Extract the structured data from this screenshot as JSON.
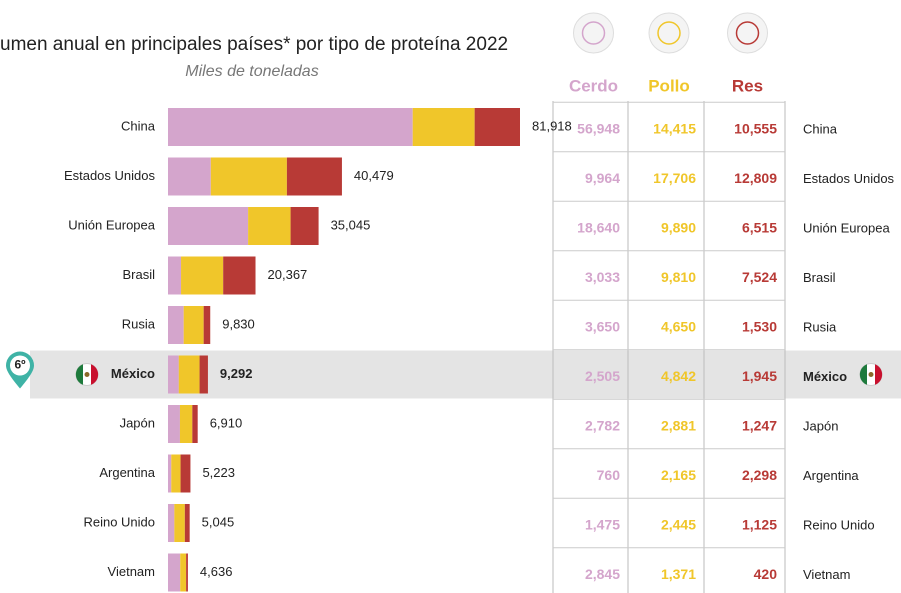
{
  "chart_data": {
    "type": "stacked-bar-table",
    "title": "umen anual en principales países* por tipo de proteína 2022",
    "subtitle": "Miles de toneladas",
    "rank_label": "6º",
    "highlight": "México",
    "categories": [
      "China",
      "Estados Unidos",
      "Unión Europea",
      "Brasil",
      "Rusia",
      "México",
      "Japón",
      "Argentina",
      "Reino Unido",
      "Vietnam"
    ],
    "totals": [
      81918,
      40479,
      35045,
      20367,
      9830,
      9292,
      6910,
      5223,
      5045,
      4636
    ],
    "total_labels": [
      "81,918",
      "40,479",
      "35,045",
      "20,367",
      "9,830",
      "9,292",
      "6,910",
      "5,223",
      "5,045",
      "4,636"
    ],
    "series": [
      {
        "name": "Cerdo",
        "color": "#d4a5cc",
        "values": [
          56948,
          9964,
          18640,
          3033,
          3650,
          2505,
          2782,
          760,
          1475,
          2845
        ],
        "value_labels": [
          "56,948",
          "9,964",
          "18,640",
          "3,033",
          "3,650",
          "2,505",
          "2,782",
          "760",
          "1,475",
          "2,845"
        ]
      },
      {
        "name": "Pollo",
        "color": "#f0c62a",
        "values": [
          14415,
          17706,
          9890,
          9810,
          4650,
          4842,
          2881,
          2165,
          2445,
          1371
        ],
        "value_labels": [
          "14,415",
          "17,706",
          "9,890",
          "9,810",
          "4,650",
          "4,842",
          "2,881",
          "2,165",
          "2,445",
          "1,371"
        ]
      },
      {
        "name": "Res",
        "color": "#b83a36",
        "values": [
          10555,
          12809,
          6515,
          7524,
          1530,
          1945,
          1247,
          2298,
          1125,
          420
        ],
        "value_labels": [
          "10,555",
          "12,809",
          "6,515",
          "7,524",
          "1,530",
          "1,945",
          "1,247",
          "2,298",
          "1,125",
          "420"
        ]
      }
    ]
  }
}
